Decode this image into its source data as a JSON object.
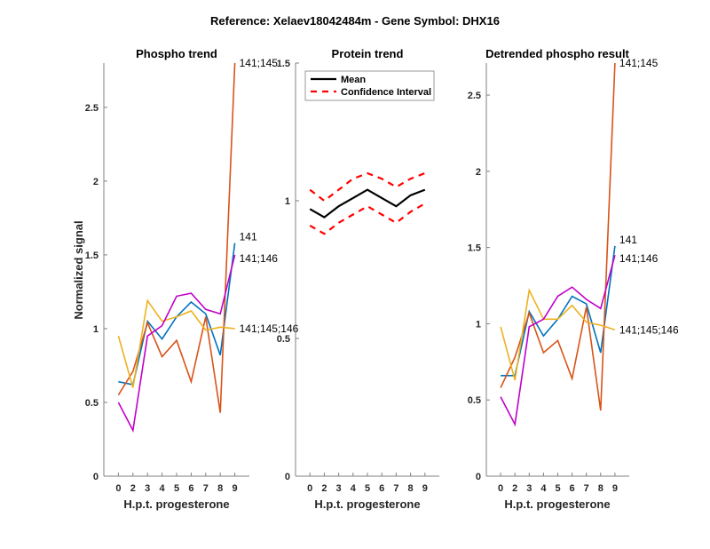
{
  "chart_data": {
    "suptitle": "Reference:  Xelaev18042484m - Gene Symbol:  DHX16",
    "panels": [
      {
        "id": "phospho",
        "type": "line",
        "title": "Phospho trend",
        "xlabel": "H.p.t. progesterone",
        "ylabel": "Normalized signal",
        "categories": [
          "0",
          "2",
          "3",
          "4",
          "5",
          "6",
          "7",
          "8",
          "9"
        ],
        "ylim": [
          0,
          2.8
        ],
        "yticks": [
          0,
          0.5,
          1,
          1.5,
          2,
          2.5
        ],
        "ytick_labels": [
          "0",
          "0.5",
          "1",
          "1.5",
          "2",
          "2.5"
        ],
        "series": [
          {
            "name": "141",
            "color": "#0072BD",
            "values": [
              0.64,
              0.62,
              1.05,
              0.93,
              1.08,
              1.18,
              1.1,
              0.82,
              1.58
            ]
          },
          {
            "name": "141;145",
            "color": "#D95319",
            "values": [
              0.55,
              0.71,
              1.04,
              0.81,
              0.92,
              0.64,
              1.08,
              0.43,
              2.8
            ]
          },
          {
            "name": "141;145;146",
            "color": "#EDB120",
            "values": [
              0.95,
              0.6,
              1.19,
              1.05,
              1.08,
              1.12,
              0.99,
              1.01,
              1.0
            ]
          },
          {
            "name": "141;146",
            "color": "#C000C8",
            "values": [
              0.5,
              0.31,
              0.95,
              1.02,
              1.22,
              1.24,
              1.13,
              1.1,
              1.5
            ]
          }
        ],
        "end_labels": [
          "141;145",
          "141",
          "141;146",
          "141;145;146"
        ]
      },
      {
        "id": "protein",
        "type": "line",
        "title": "Protein trend",
        "xlabel": "H.p.t. progesterone",
        "ylabel": "",
        "categories": [
          "0",
          "2",
          "3",
          "4",
          "5",
          "6",
          "7",
          "8",
          "9"
        ],
        "ylim": [
          0,
          1.5
        ],
        "yticks": [
          0,
          0.5,
          1,
          1.5
        ],
        "ytick_labels": [
          "0",
          "0.5",
          "1",
          "1.5"
        ],
        "series": [
          {
            "name": "Mean",
            "color": "#000000",
            "style": "solid",
            "values": [
              0.97,
              0.94,
              0.98,
              1.01,
              1.04,
              1.01,
              0.98,
              1.02,
              1.04
            ]
          },
          {
            "name": "Confidence Interval",
            "color": "#FF0000",
            "style": "dashed",
            "values": [
              1.04,
              1.0,
              1.04,
              1.08,
              1.1,
              1.08,
              1.05,
              1.08,
              1.1
            ]
          },
          {
            "name": "Confidence Interval (lower)",
            "color": "#FF0000",
            "style": "dashed",
            "values": [
              0.91,
              0.88,
              0.92,
              0.95,
              0.98,
              0.95,
              0.92,
              0.96,
              0.99
            ]
          }
        ],
        "legend": {
          "placement": "top-left",
          "entries": [
            "Mean",
            "Confidence Interval"
          ]
        }
      },
      {
        "id": "detrended",
        "type": "line",
        "title": "Detrended phospho result",
        "xlabel": "H.p.t. progesterone",
        "ylabel": "",
        "categories": [
          "0",
          "2",
          "3",
          "4",
          "5",
          "6",
          "7",
          "8",
          "9"
        ],
        "ylim": [
          0,
          2.71
        ],
        "yticks": [
          0,
          0.5,
          1,
          1.5,
          2,
          2.5
        ],
        "ytick_labels": [
          "0",
          "0.5",
          "1",
          "1.5",
          "2",
          "2.5"
        ],
        "series": [
          {
            "name": "141",
            "color": "#0072BD",
            "values": [
              0.66,
              0.66,
              1.08,
              0.92,
              1.03,
              1.18,
              1.13,
              0.81,
              1.51
            ]
          },
          {
            "name": "141;145",
            "color": "#D95319",
            "values": [
              0.58,
              0.78,
              1.07,
              0.81,
              0.89,
              0.64,
              1.11,
              0.43,
              2.71
            ]
          },
          {
            "name": "141;145;146",
            "color": "#EDB120",
            "values": [
              0.98,
              0.63,
              1.22,
              1.03,
              1.03,
              1.12,
              1.01,
              0.99,
              0.96
            ]
          },
          {
            "name": "141;146",
            "color": "#C000C8",
            "values": [
              0.52,
              0.34,
              0.98,
              1.03,
              1.18,
              1.24,
              1.16,
              1.1,
              1.45
            ]
          }
        ],
        "end_labels": [
          "141;145",
          "141",
          "141;146",
          "141;145;146"
        ]
      }
    ]
  }
}
